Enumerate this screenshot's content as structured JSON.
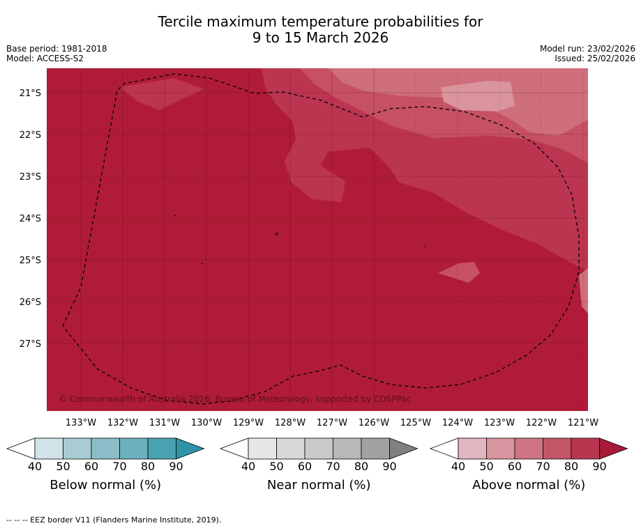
{
  "title_line1": "Tercile maximum temperature probabilities for",
  "title_line2": "9 to 15 March 2026",
  "base_period": "Base period: 1981-2018",
  "model": "Model: ACCESS-S2",
  "model_run": "Model run: 23/02/2026",
  "issued": "Issued: 25/02/2026",
  "copyright": "© Commonwealth of Australia 2026, Bureau of Meteorology, supported by COSPPac",
  "lat_labels": [
    "21°S",
    "22°S",
    "23°S",
    "24°S",
    "25°S",
    "26°S",
    "27°S"
  ],
  "lon_labels": [
    "133°W",
    "132°W",
    "131°W",
    "130°W",
    "129°W",
    "128°W",
    "127°W",
    "126°W",
    "125°W",
    "124°W",
    "123°W",
    "122°W",
    "121°W"
  ],
  "colorbars": [
    {
      "label": "Below normal (%)",
      "ticks": [
        "40",
        "50",
        "60",
        "70",
        "80",
        "90"
      ],
      "colors": [
        "#ffffff",
        "#cfe3e8",
        "#a9cbd3",
        "#8bbcc7",
        "#6db0bd",
        "#4aa1b1",
        "#2e93a8"
      ]
    },
    {
      "label": "Near normal (%)",
      "ticks": [
        "40",
        "50",
        "60",
        "70",
        "80",
        "90"
      ],
      "colors": [
        "#ffffff",
        "#e6e6e6",
        "#d8d8d8",
        "#c9c9c9",
        "#b8b8b8",
        "#a2a2a2",
        "#808080"
      ]
    },
    {
      "label": "Above normal (%)",
      "ticks": [
        "40",
        "50",
        "60",
        "70",
        "80",
        "90"
      ],
      "colors": [
        "#ffffff",
        "#e2b6be",
        "#d8949f",
        "#cf7581",
        "#c4566a",
        "#b8374f",
        "#a8193a"
      ]
    }
  ],
  "footer": "--  --  -- EEZ border V11 (Flanders Marine Institute, 2019).",
  "map_colors": {
    "c90": "#b01c37",
    "c80": "#bb3550",
    "c70": "#c65064",
    "c60": "#ce6f7b",
    "c50": "#d9949d"
  }
}
